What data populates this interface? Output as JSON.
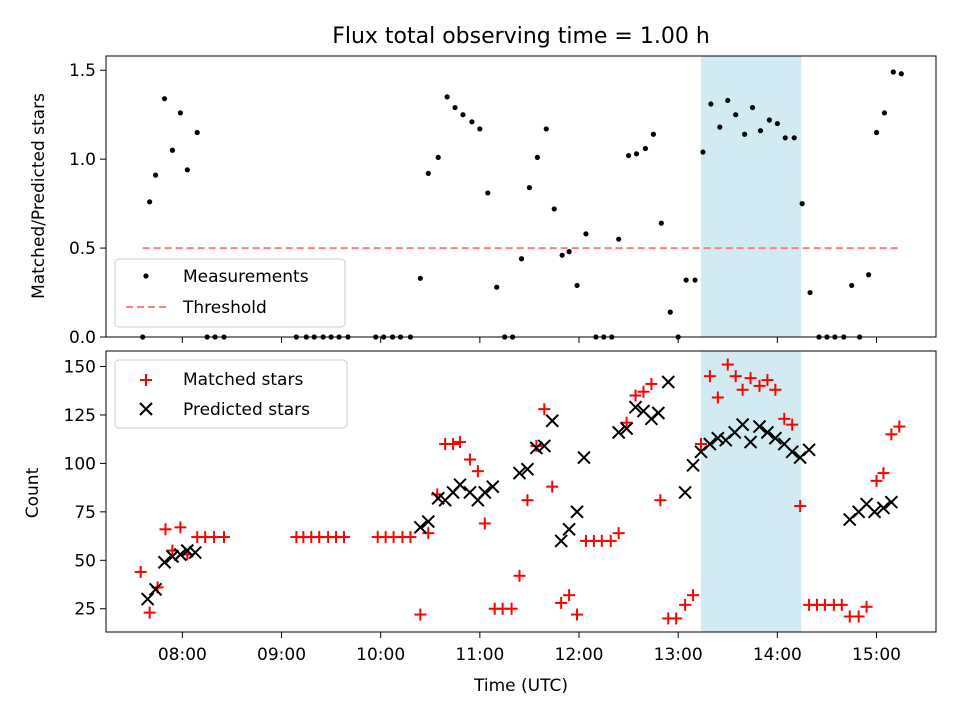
{
  "title": "Flux total observing time = 1.00 h",
  "xlabel": "Time (UTC)",
  "x_ticks": [
    "08:00",
    "09:00",
    "10:00",
    "11:00",
    "12:00",
    "13:00",
    "14:00",
    "15:00"
  ],
  "colors": {
    "measurement": "#000000",
    "threshold": "#ff7f7f",
    "matched": "#ff0000",
    "predicted": "#000000",
    "highlight": "#add8e6"
  },
  "chart_data": [
    {
      "type": "scatter",
      "title": "Flux total observing time = 1.00 h",
      "xlabel": "",
      "ylabel": "Matched/Predicted stars",
      "xlim_hours": [
        7.23,
        15.6
      ],
      "ylim": [
        0,
        1.58
      ],
      "y_ticks": [
        "0.0",
        "0.5",
        "1.0",
        "1.5"
      ],
      "legend_position": "lower left",
      "highlight_span_hours": [
        13.23,
        14.24
      ],
      "highlight_color": "light blue",
      "series": [
        {
          "name": "Measurements",
          "marker": "dot",
          "points": [
            [
              7.6,
              0
            ],
            [
              7.67,
              0.76
            ],
            [
              7.73,
              0.91
            ],
            [
              7.82,
              1.34
            ],
            [
              7.9,
              1.05
            ],
            [
              7.98,
              1.26
            ],
            [
              8.05,
              0.94
            ],
            [
              8.15,
              1.15
            ],
            [
              8.25,
              0
            ],
            [
              8.33,
              0
            ],
            [
              8.42,
              0
            ],
            [
              9.15,
              0
            ],
            [
              9.25,
              0
            ],
            [
              9.33,
              0
            ],
            [
              9.42,
              0
            ],
            [
              9.5,
              0
            ],
            [
              9.58,
              0
            ],
            [
              9.67,
              0
            ],
            [
              9.95,
              0
            ],
            [
              10.03,
              0
            ],
            [
              10.12,
              0
            ],
            [
              10.2,
              0
            ],
            [
              10.3,
              0
            ],
            [
              10.4,
              0.33
            ],
            [
              10.48,
              0.92
            ],
            [
              10.58,
              1.01
            ],
            [
              10.67,
              1.35
            ],
            [
              10.75,
              1.29
            ],
            [
              10.83,
              1.25
            ],
            [
              10.92,
              1.21
            ],
            [
              11.0,
              1.17
            ],
            [
              11.08,
              0.81
            ],
            [
              11.17,
              0.28
            ],
            [
              11.25,
              0
            ],
            [
              11.33,
              0
            ],
            [
              11.42,
              0.44
            ],
            [
              11.5,
              0.84
            ],
            [
              11.58,
              1.01
            ],
            [
              11.67,
              1.17
            ],
            [
              11.75,
              0.72
            ],
            [
              11.83,
              0.46
            ],
            [
              11.9,
              0.48
            ],
            [
              11.98,
              0.29
            ],
            [
              12.07,
              0.58
            ],
            [
              12.17,
              0
            ],
            [
              12.25,
              0
            ],
            [
              12.33,
              0
            ],
            [
              12.4,
              0.55
            ],
            [
              12.5,
              1.02
            ],
            [
              12.58,
              1.03
            ],
            [
              12.67,
              1.06
            ],
            [
              12.75,
              1.14
            ],
            [
              12.83,
              0.64
            ],
            [
              12.92,
              0.14
            ],
            [
              13.0,
              0
            ],
            [
              13.08,
              0.32
            ],
            [
              13.17,
              0.32
            ],
            [
              13.25,
              1.04
            ],
            [
              13.33,
              1.31
            ],
            [
              13.42,
              1.18
            ],
            [
              13.5,
              1.33
            ],
            [
              13.58,
              1.25
            ],
            [
              13.67,
              1.14
            ],
            [
              13.75,
              1.29
            ],
            [
              13.83,
              1.16
            ],
            [
              13.92,
              1.22
            ],
            [
              14.0,
              1.2
            ],
            [
              14.08,
              1.12
            ],
            [
              14.17,
              1.12
            ],
            [
              14.25,
              0.75
            ],
            [
              14.33,
              0.25
            ],
            [
              14.42,
              0
            ],
            [
              14.5,
              0
            ],
            [
              14.58,
              0
            ],
            [
              14.67,
              0
            ],
            [
              14.75,
              0.29
            ],
            [
              14.83,
              0
            ],
            [
              14.92,
              0.35
            ],
            [
              15.0,
              1.15
            ],
            [
              15.08,
              1.26
            ],
            [
              15.17,
              1.49
            ],
            [
              15.25,
              1.48
            ]
          ]
        },
        {
          "name": "Threshold",
          "style": "dashed line",
          "points": [
            [
              7.6,
              0.5
            ],
            [
              15.25,
              0.5
            ]
          ]
        }
      ]
    },
    {
      "type": "scatter",
      "title": "",
      "xlabel": "Time (UTC)",
      "ylabel": "Count",
      "xlim_hours": [
        7.23,
        15.6
      ],
      "ylim": [
        13,
        158
      ],
      "y_ticks": [
        "25",
        "50",
        "75",
        "100",
        "125",
        "150"
      ],
      "legend_position": "upper left",
      "highlight_span_hours": [
        13.23,
        14.24
      ],
      "highlight_color": "light blue",
      "series": [
        {
          "name": "Matched stars",
          "marker": "plus",
          "points": [
            [
              7.58,
              44
            ],
            [
              7.67,
              23
            ],
            [
              7.75,
              36
            ],
            [
              7.83,
              66
            ],
            [
              7.9,
              55
            ],
            [
              7.98,
              67
            ],
            [
              8.05,
              53
            ],
            [
              8.15,
              62
            ],
            [
              8.23,
              62
            ],
            [
              8.32,
              62
            ],
            [
              8.42,
              62
            ],
            [
              9.15,
              62
            ],
            [
              9.22,
              62
            ],
            [
              9.3,
              62
            ],
            [
              9.38,
              62
            ],
            [
              9.47,
              62
            ],
            [
              9.55,
              62
            ],
            [
              9.63,
              62
            ],
            [
              9.97,
              62
            ],
            [
              10.05,
              62
            ],
            [
              10.13,
              62
            ],
            [
              10.22,
              62
            ],
            [
              10.3,
              62
            ],
            [
              10.4,
              22
            ],
            [
              10.48,
              64
            ],
            [
              10.57,
              84
            ],
            [
              10.65,
              110
            ],
            [
              10.73,
              110
            ],
            [
              10.8,
              111
            ],
            [
              10.9,
              102
            ],
            [
              10.98,
              96
            ],
            [
              11.05,
              69
            ],
            [
              11.15,
              25
            ],
            [
              11.23,
              25
            ],
            [
              11.32,
              25
            ],
            [
              11.4,
              42
            ],
            [
              11.48,
              81
            ],
            [
              11.57,
              109
            ],
            [
              11.65,
              128
            ],
            [
              11.73,
              88
            ],
            [
              11.82,
              28
            ],
            [
              11.9,
              32
            ],
            [
              11.98,
              22
            ],
            [
              12.07,
              60
            ],
            [
              12.15,
              60
            ],
            [
              12.23,
              60
            ],
            [
              12.32,
              60
            ],
            [
              12.4,
              64
            ],
            [
              12.48,
              121
            ],
            [
              12.57,
              135
            ],
            [
              12.65,
              137
            ],
            [
              12.73,
              141
            ],
            [
              12.82,
              81
            ],
            [
              12.9,
              20
            ],
            [
              12.98,
              20
            ],
            [
              13.07,
              27
            ],
            [
              13.15,
              32
            ],
            [
              13.23,
              110
            ],
            [
              13.32,
              145
            ],
            [
              13.4,
              134
            ],
            [
              13.5,
              151
            ],
            [
              13.58,
              145
            ],
            [
              13.65,
              138
            ],
            [
              13.73,
              144
            ],
            [
              13.82,
              140
            ],
            [
              13.9,
              143
            ],
            [
              13.98,
              138
            ],
            [
              14.07,
              123
            ],
            [
              14.15,
              120
            ],
            [
              14.23,
              78
            ],
            [
              14.32,
              27
            ],
            [
              14.4,
              27
            ],
            [
              14.48,
              27
            ],
            [
              14.57,
              27
            ],
            [
              14.65,
              27
            ],
            [
              14.73,
              21
            ],
            [
              14.82,
              21
            ],
            [
              14.9,
              26
            ],
            [
              15.0,
              91
            ],
            [
              15.07,
              95
            ],
            [
              15.15,
              115
            ],
            [
              15.23,
              119
            ]
          ]
        },
        {
          "name": "Predicted stars",
          "marker": "x",
          "points": [
            [
              7.65,
              30
            ],
            [
              7.73,
              35
            ],
            [
              7.82,
              49
            ],
            [
              7.9,
              52
            ],
            [
              7.98,
              53
            ],
            [
              8.05,
              55
            ],
            [
              8.13,
              54
            ],
            [
              10.4,
              67
            ],
            [
              10.48,
              70
            ],
            [
              10.58,
              82
            ],
            [
              10.65,
              81
            ],
            [
              10.73,
              85
            ],
            [
              10.8,
              89
            ],
            [
              10.9,
              85
            ],
            [
              10.98,
              81
            ],
            [
              11.05,
              85
            ],
            [
              11.13,
              88
            ],
            [
              11.4,
              95
            ],
            [
              11.48,
              97
            ],
            [
              11.57,
              108
            ],
            [
              11.65,
              109
            ],
            [
              11.73,
              122
            ],
            [
              11.82,
              60
            ],
            [
              11.9,
              66
            ],
            [
              11.98,
              75
            ],
            [
              12.05,
              103
            ],
            [
              12.4,
              116
            ],
            [
              12.48,
              118
            ],
            [
              12.57,
              129
            ],
            [
              12.65,
              127
            ],
            [
              12.73,
              123
            ],
            [
              12.8,
              126
            ],
            [
              12.9,
              142
            ],
            [
              13.07,
              85
            ],
            [
              13.15,
              99
            ],
            [
              13.23,
              106
            ],
            [
              13.32,
              110
            ],
            [
              13.4,
              113
            ],
            [
              13.48,
              112
            ],
            [
              13.57,
              116
            ],
            [
              13.65,
              120
            ],
            [
              13.73,
              111
            ],
            [
              13.82,
              119
            ],
            [
              13.9,
              116
            ],
            [
              13.98,
              113
            ],
            [
              14.07,
              110
            ],
            [
              14.15,
              106
            ],
            [
              14.23,
              103
            ],
            [
              14.32,
              107
            ],
            [
              14.73,
              71
            ],
            [
              14.82,
              75
            ],
            [
              14.9,
              79
            ],
            [
              14.98,
              75
            ],
            [
              15.07,
              77
            ],
            [
              15.15,
              80
            ]
          ]
        }
      ]
    }
  ]
}
